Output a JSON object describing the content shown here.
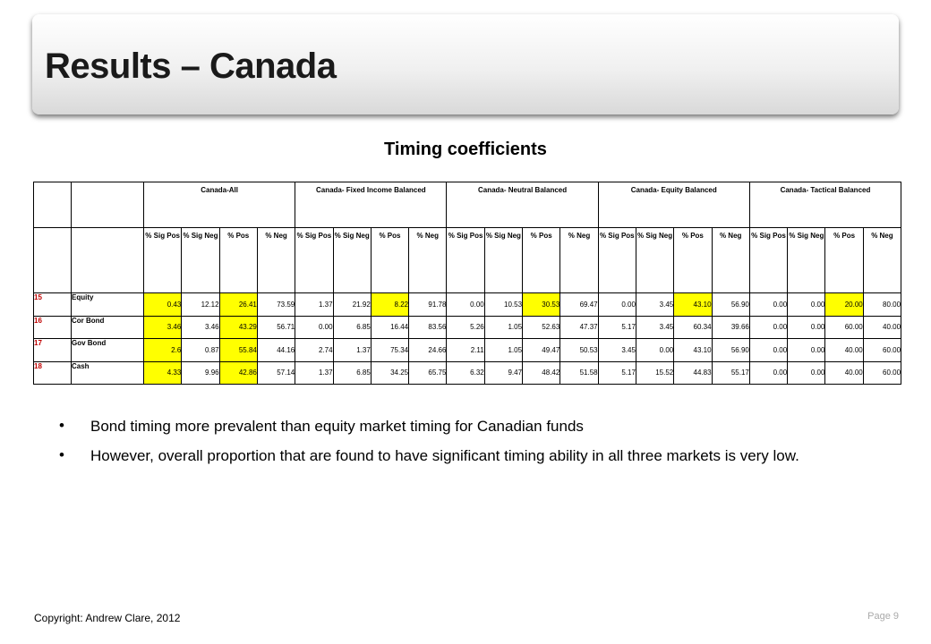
{
  "title": "Results – Canada",
  "subtitle": "Timing coefficients",
  "table": {
    "groups": [
      "Canada-All",
      "Canada- Fixed Income Balanced",
      "Canada- Neutral Balanced",
      "Canada- Equity Balanced",
      "Canada- Tactical Balanced"
    ],
    "subheaders": [
      "% Sig Pos",
      "% Sig Neg",
      "% Pos",
      "% Neg"
    ],
    "highlight_color": "#ffff00",
    "row_number_color": "#c00000",
    "rows": [
      {
        "num": "15",
        "label": "Equity",
        "values": [
          "0.43",
          "12.12",
          "26.41",
          "73.59",
          "1.37",
          "21.92",
          "8.22",
          "91.78",
          "0.00",
          "10.53",
          "30.53",
          "69.47",
          "0.00",
          "3.45",
          "43.10",
          "56.90",
          "0.00",
          "0.00",
          "20.00",
          "80.00"
        ],
        "highlight": [
          0,
          2,
          6,
          10,
          14,
          18
        ]
      },
      {
        "num": "16",
        "label": "Cor Bond",
        "values": [
          "3.46",
          "3.46",
          "43.29",
          "56.71",
          "0.00",
          "6.85",
          "16.44",
          "83.56",
          "5.26",
          "1.05",
          "52.63",
          "47.37",
          "5.17",
          "3.45",
          "60.34",
          "39.66",
          "0.00",
          "0.00",
          "60.00",
          "40.00"
        ],
        "highlight": [
          0,
          2
        ]
      },
      {
        "num": "17",
        "label": "Gov Bond",
        "values": [
          "2.6",
          "0.87",
          "55.84",
          "44.16",
          "2.74",
          "1.37",
          "75.34",
          "24.66",
          "2.11",
          "1.05",
          "49.47",
          "50.53",
          "3.45",
          "0.00",
          "43.10",
          "56.90",
          "0.00",
          "0.00",
          "40.00",
          "60.00"
        ],
        "highlight": [
          0,
          2
        ]
      },
      {
        "num": "18",
        "label": "Cash",
        "values": [
          "4.33",
          "9.96",
          "42.86",
          "57.14",
          "1.37",
          "6.85",
          "34.25",
          "65.75",
          "6.32",
          "9.47",
          "48.42",
          "51.58",
          "5.17",
          "15.52",
          "44.83",
          "55.17",
          "0.00",
          "0.00",
          "40.00",
          "60.00"
        ],
        "highlight": [
          0,
          2
        ]
      }
    ]
  },
  "bullets": [
    "Bond timing more prevalent than equity market timing for Canadian funds",
    "However, overall proportion that are found to have significant timing ability in all three markets is very low."
  ],
  "footer": {
    "copyright": "Copyright: Andrew Clare, 2012",
    "page": "Page 9"
  }
}
